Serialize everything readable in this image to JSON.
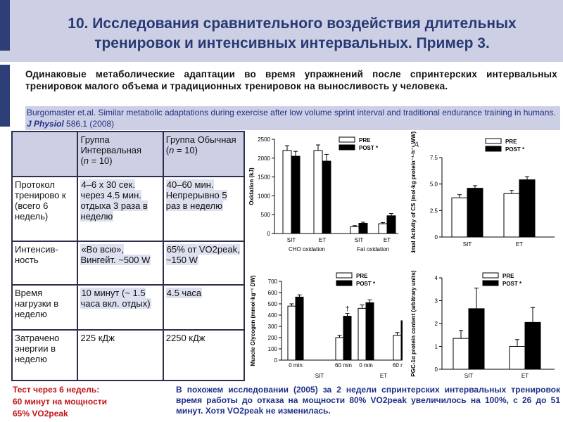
{
  "header": {
    "title_line1": "10.  Исследования сравнительного воздействия длительных",
    "title_line2": "тренировок и интенсивных интервальных. Пример 3."
  },
  "intro": "Одинаковые метаболические адаптации во время упражнений после спринтерских интервальных тренировок малого объема и традиционных тренировок на выносливость у человека.",
  "citation": {
    "authors_title": "Burgomaster et.al. Similar metabolic adaptations during exercise after low volume sprint interval and traditional endurance training in humans.",
    "journal": "J Physiol",
    "volume": "586.1 (2008)"
  },
  "table": {
    "headers": [
      "",
      "Группа Интервальная (n = 10)",
      "Группа Обычная (n = 10)"
    ],
    "rows": [
      [
        "Протокол тренирово к (всего 6 недель)",
        "4–6 x 30 сек. через 4.5 мин. отдыха 3 раза в неделю",
        "40–60 мин. Непрерывно 5 раз в неделю"
      ],
      [
        "Интенсив-ность",
        "«Во всю», Вингейт. ~500 W",
        "65% от VO2peak, ~150 W"
      ],
      [
        "Время нагрузки в неделю",
        "10 минут (~ 1.5 часа вкл. отдых)",
        "4.5 часа"
      ],
      [
        "Затрачено энергии в неделю",
        "225 кДж",
        "2250 кДж"
      ]
    ]
  },
  "bottom_left": {
    "line1": "Тест через 6 недель:",
    "line2": "60 минут на мощности",
    "line3": "65% VO2peak"
  },
  "bottom_right": "В похожем исследовании (2005) за 2 недели спринтерских интервальных тренировок время работы до отказа на мощности 80% VO2peak увеличилось на 100%, с 26 до 51 минут. Хотя VO2peak не изменилась.",
  "colors": {
    "pre": "#ffffff",
    "post": "#000000",
    "header_bg": "#cdd0e4",
    "title": "#283a74",
    "alert": "#c0141a"
  },
  "chart_data": [
    {
      "type": "bar",
      "ylabel": "Oxidation (kJ)",
      "ylim": [
        0,
        2500
      ],
      "yticks": [
        0,
        500,
        1000,
        1500,
        2000,
        2500
      ],
      "legend": [
        "PRE",
        "POST *"
      ],
      "groups": [
        {
          "label": "CHO oxidation",
          "categories": [
            "SIT",
            "ET"
          ]
        },
        {
          "label": "Fat oxidation",
          "categories": [
            "SIT",
            "ET"
          ]
        }
      ],
      "series": [
        {
          "name": "PRE",
          "values": [
            2200,
            2200,
            180,
            260
          ]
        },
        {
          "name": "POST *",
          "values": [
            2050,
            1920,
            270,
            470
          ]
        }
      ],
      "errors": [
        [
          130,
          150,
          30,
          30
        ],
        [
          130,
          180,
          30,
          60
        ]
      ]
    },
    {
      "type": "bar",
      "panel": "A",
      "ylabel": "Maximal Activity of CS (mol·kg protein⁻¹·h⁻¹ WW)",
      "ylim": [
        0,
        7.5
      ],
      "yticks": [
        0,
        2.5,
        5.0,
        7.5
      ],
      "tick_labels": [
        "0",
        "2.5",
        "5.0",
        "7.5"
      ],
      "legend": [
        "PRE",
        "POST *"
      ],
      "categories": [
        "SIT",
        "ET"
      ],
      "series": [
        {
          "name": "PRE",
          "values": [
            3.7,
            4.1
          ]
        },
        {
          "name": "POST *",
          "values": [
            4.6,
            5.4
          ]
        }
      ],
      "errors": [
        [
          0.3,
          0.3
        ],
        [
          0.25,
          0.3
        ]
      ]
    },
    {
      "type": "bar",
      "ylabel": "Muscle Glycogen (mmol·kg⁻¹ DW)",
      "ylim": [
        0,
        700
      ],
      "yticks": [
        0,
        100,
        200,
        300,
        400,
        500,
        600,
        700
      ],
      "legend": [
        "PRE",
        "POST *"
      ],
      "groups": [
        {
          "label": "SIT",
          "categories": [
            "0 min",
            "60 min"
          ]
        },
        {
          "label": "ET",
          "categories": [
            "0 min",
            "60 min"
          ]
        }
      ],
      "series": [
        {
          "name": "PRE",
          "values": [
            480,
            200,
            460,
            220
          ]
        },
        {
          "name": "POST *",
          "values": [
            560,
            390,
            510,
            350
          ]
        }
      ],
      "errors": [
        [
          20,
          20,
          30,
          25
        ],
        [
          20,
          25,
          25,
          25
        ]
      ],
      "annotations": [
        "†",
        "†"
      ]
    },
    {
      "type": "bar",
      "ylabel": "PGC-1α protein content (arbitrary units)",
      "ylim": [
        0,
        4
      ],
      "yticks": [
        0,
        1,
        2,
        3,
        4
      ],
      "legend": [
        "PRE",
        "POST *"
      ],
      "categories": [
        "SIT",
        "ET"
      ],
      "series": [
        {
          "name": "PRE",
          "values": [
            1.35,
            1.0
          ]
        },
        {
          "name": "POST *",
          "values": [
            2.65,
            2.05
          ]
        }
      ],
      "errors": [
        [
          0.35,
          0.3
        ],
        [
          0.9,
          0.65
        ]
      ]
    }
  ]
}
